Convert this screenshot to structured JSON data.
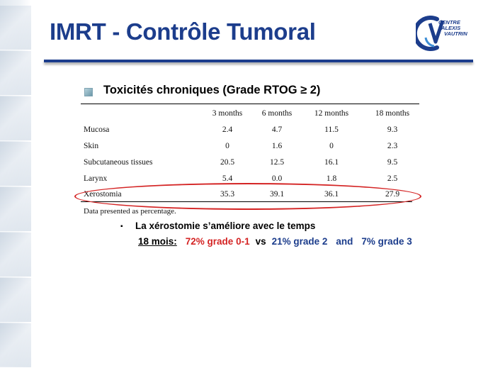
{
  "slide": {
    "title": "IMRT - Contrôle Tumoral",
    "logo": {
      "line1": "CENTRE",
      "line2": "ALEXIS",
      "line3": "VAUTRIN"
    }
  },
  "section": {
    "heading": "Toxicités chroniques (Grade RTOG ≥ 2)"
  },
  "table": {
    "columns": [
      "",
      "3 months",
      "6 months",
      "12 months",
      "18 months"
    ],
    "rows": [
      {
        "label": "Mucosa",
        "values": [
          "2.4",
          "4.7",
          "11.5",
          "9.3"
        ]
      },
      {
        "label": "Skin",
        "values": [
          "0",
          "1.6",
          "0",
          "2.3"
        ]
      },
      {
        "label": "Subcutaneous tissues",
        "values": [
          "20.5",
          "12.5",
          "16.1",
          "9.5"
        ]
      },
      {
        "label": "Larynx",
        "values": [
          "5.4",
          "0.0",
          "1.8",
          "2.5"
        ]
      },
      {
        "label": "Xerostomia",
        "values": [
          "35.3",
          "39.1",
          "36.1",
          "27.9"
        ]
      }
    ],
    "note": "Data presented as percentage."
  },
  "bullet": {
    "marker": "▪",
    "text": "La xérostomie s’améliore avec le temps"
  },
  "stats": {
    "label": "18 mois:",
    "red": "72% grade 0-1",
    "vs": "vs",
    "blue1": "21% grade 2",
    "and": "and",
    "blue2": "7% grade 3"
  },
  "colors": {
    "title": "#1c3d8c",
    "highlight": "#d42424"
  }
}
